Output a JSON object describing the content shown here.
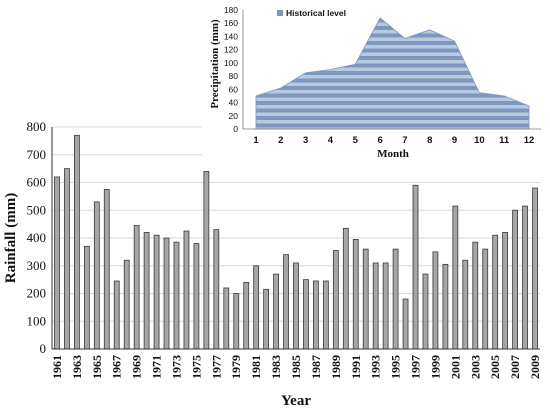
{
  "chart_data": [
    {
      "type": "bar",
      "xlabel": "Year",
      "ylabel": "Rainfall (mm)",
      "ylim": [
        0,
        800
      ],
      "yticks": [
        0,
        100,
        200,
        300,
        400,
        500,
        600,
        700,
        800
      ],
      "grid": "horizontal",
      "bar_color": "#a6a6a6",
      "categories": [
        "1961",
        "1962",
        "1963",
        "1964",
        "1965",
        "1966",
        "1967",
        "1968",
        "1969",
        "1970",
        "1971",
        "1972",
        "1973",
        "1974",
        "1975",
        "1976",
        "1977",
        "1978",
        "1979",
        "1980",
        "1981",
        "1982",
        "1983",
        "1984",
        "1985",
        "1986",
        "1987",
        "1988",
        "1989",
        "1990",
        "1991",
        "1992",
        "1993",
        "1994",
        "1995",
        "1996",
        "1997",
        "1998",
        "1999",
        "2000",
        "2001",
        "2002",
        "2003",
        "2004",
        "2005",
        "2006",
        "2007",
        "2008",
        "2009"
      ],
      "shown_tick_labels": [
        "1961",
        "1963",
        "1965",
        "1967",
        "1969",
        "1971",
        "1973",
        "1975",
        "1977",
        "1979",
        "1981",
        "1983",
        "1985",
        "1987",
        "1989",
        "1991",
        "1993",
        "1995",
        "1997",
        "1999",
        "2001",
        "2003",
        "2005",
        "2007",
        "2009"
      ],
      "values": [
        620,
        650,
        770,
        370,
        530,
        575,
        245,
        320,
        445,
        420,
        410,
        400,
        385,
        425,
        380,
        640,
        430,
        220,
        200,
        240,
        300,
        215,
        270,
        340,
        310,
        250,
        245,
        245,
        355,
        435,
        395,
        360,
        310,
        310,
        360,
        180,
        590,
        270,
        350,
        305,
        515,
        320,
        385,
        360,
        410,
        420,
        500,
        515,
        580
      ]
    },
    {
      "type": "area",
      "xlabel": "Month",
      "ylabel": "Precipitation (mm)",
      "ylim": [
        0,
        180
      ],
      "yticks": [
        0,
        20,
        40,
        60,
        80,
        100,
        120,
        140,
        160,
        180
      ],
      "legend_position": "top-left",
      "fill_color": "#7d98bf",
      "stripe_color": "#b9c9de",
      "series": [
        {
          "name": "Historical level",
          "x": [
            1,
            2,
            3,
            4,
            5,
            6,
            7,
            8,
            9,
            10,
            11,
            12
          ],
          "values": [
            50,
            62,
            85,
            90,
            98,
            168,
            137,
            150,
            133,
            55,
            50,
            35
          ]
        }
      ]
    }
  ]
}
